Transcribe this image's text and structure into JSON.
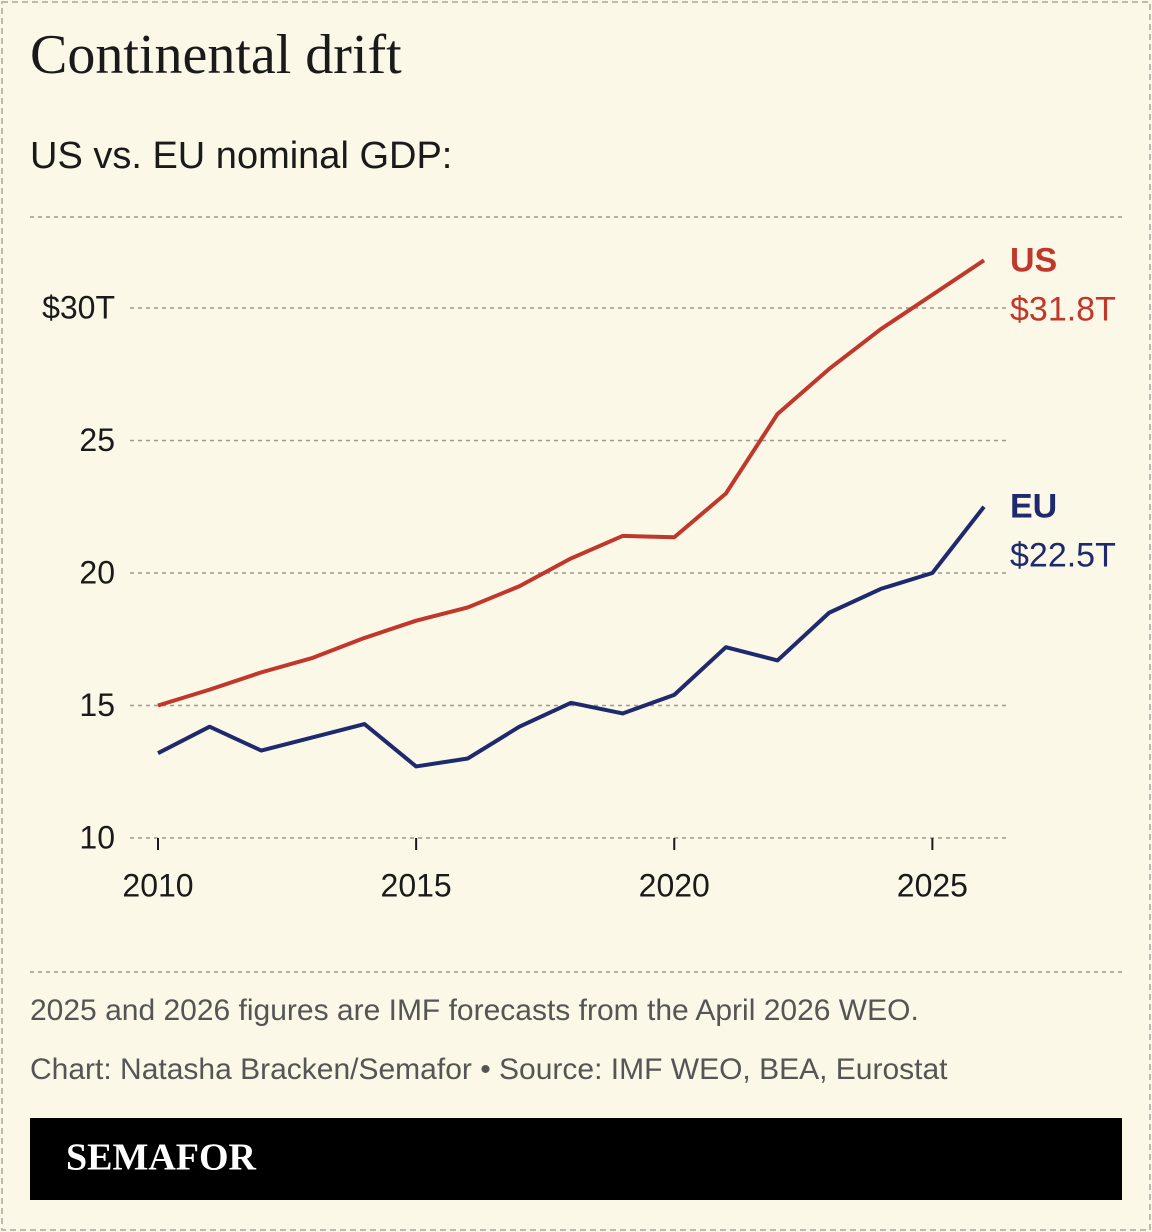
{
  "chart_data": {
    "type": "line",
    "title": "Continental drift",
    "subtitle": "US vs. EU nominal GDP:",
    "x": [
      2010,
      2011,
      2012,
      2013,
      2014,
      2015,
      2016,
      2017,
      2018,
      2019,
      2020,
      2021,
      2022,
      2023,
      2024,
      2025,
      2026
    ],
    "series": [
      {
        "name": "US",
        "color": "#c0382b",
        "values": [
          15.0,
          15.6,
          16.25,
          16.8,
          17.55,
          18.2,
          18.7,
          19.5,
          20.55,
          21.4,
          21.35,
          23.0,
          26.0,
          27.7,
          29.2,
          30.5,
          31.8
        ],
        "value_labels": [
          null,
          null,
          null,
          null,
          null,
          null,
          null,
          null,
          null,
          null,
          null,
          null,
          null,
          null,
          null,
          null,
          "$31.8T"
        ]
      },
      {
        "name": "EU",
        "color": "#1f2a6e",
        "values": [
          13.2,
          14.2,
          13.3,
          13.8,
          14.3,
          12.7,
          13.0,
          14.2,
          15.1,
          14.7,
          15.4,
          17.2,
          16.7,
          18.5,
          19.4,
          20.0,
          22.5
        ],
        "value_labels": [
          null,
          null,
          null,
          null,
          null,
          null,
          null,
          null,
          null,
          null,
          null,
          null,
          null,
          null,
          null,
          null,
          "$22.5T"
        ]
      }
    ],
    "xlim": [
      2010,
      2026
    ],
    "xticks": [
      2010,
      2015,
      2020,
      2025
    ],
    "ylim": [
      10,
      32
    ],
    "yticks": [
      10,
      15,
      20,
      25,
      {
        "value": 30,
        "label": "$30T"
      }
    ],
    "grid": true,
    "note": "2025 and 2026 figures are IMF forecasts from the April 2026 WEO.",
    "source": "Chart: Natasha Bracken/Semafor • Source: IMF WEO, BEA, Eurostat",
    "brand": "SEMAFOR"
  }
}
